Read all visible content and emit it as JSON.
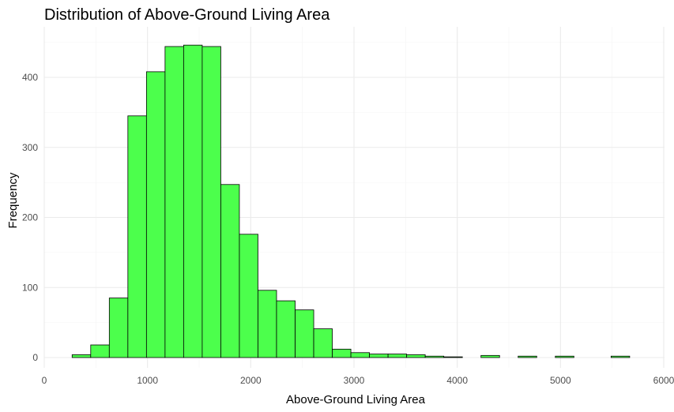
{
  "chart_data": {
    "type": "bar",
    "title": "Distribution of Above-Ground Living Area",
    "xlabel": "Above-Ground Living Area",
    "ylabel": "Frequency",
    "bin_width": 180,
    "bins": [
      {
        "x0": 270,
        "count": 4
      },
      {
        "x0": 450,
        "count": 18
      },
      {
        "x0": 630,
        "count": 85
      },
      {
        "x0": 810,
        "count": 345
      },
      {
        "x0": 990,
        "count": 408
      },
      {
        "x0": 1170,
        "count": 444
      },
      {
        "x0": 1350,
        "count": 446
      },
      {
        "x0": 1530,
        "count": 444
      },
      {
        "x0": 1710,
        "count": 247
      },
      {
        "x0": 1890,
        "count": 176
      },
      {
        "x0": 2070,
        "count": 96
      },
      {
        "x0": 2250,
        "count": 81
      },
      {
        "x0": 2430,
        "count": 68
      },
      {
        "x0": 2610,
        "count": 41
      },
      {
        "x0": 2790,
        "count": 12
      },
      {
        "x0": 2970,
        "count": 7
      },
      {
        "x0": 3150,
        "count": 5
      },
      {
        "x0": 3330,
        "count": 5
      },
      {
        "x0": 3510,
        "count": 4
      },
      {
        "x0": 3690,
        "count": 2
      },
      {
        "x0": 3870,
        "count": 1
      },
      {
        "x0": 4050,
        "count": 0
      },
      {
        "x0": 4230,
        "count": 3
      },
      {
        "x0": 4410,
        "count": 0
      },
      {
        "x0": 4590,
        "count": 2
      },
      {
        "x0": 4770,
        "count": 0
      },
      {
        "x0": 4950,
        "count": 2
      },
      {
        "x0": 5130,
        "count": 0
      },
      {
        "x0": 5310,
        "count": 0
      },
      {
        "x0": 5490,
        "count": 2
      }
    ],
    "xlim": [
      0,
      6000
    ],
    "ylim": [
      0,
      460
    ],
    "x_ticks": [
      0,
      1000,
      2000,
      3000,
      4000,
      5000,
      6000
    ],
    "y_ticks": [
      0,
      100,
      200,
      300,
      400
    ],
    "grid": true,
    "fill_color": "#4cff4c",
    "edge_color": "#000000"
  }
}
